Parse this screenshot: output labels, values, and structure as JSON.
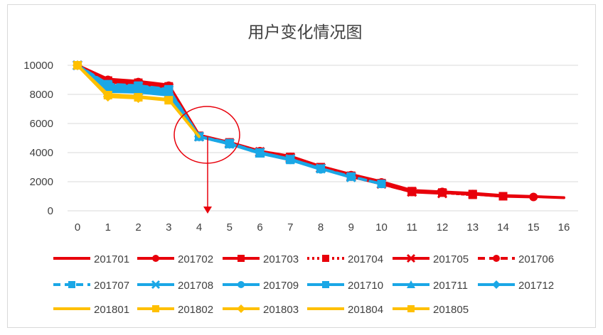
{
  "chart_data": {
    "type": "line",
    "title": "用户变化情况图",
    "xlabel": "",
    "ylabel": "",
    "x": [
      0,
      1,
      2,
      3,
      4,
      5,
      6,
      7,
      8,
      9,
      10,
      11,
      12,
      13,
      14,
      15,
      16
    ],
    "xlim": [
      0,
      16
    ],
    "ylim": [
      0,
      10000
    ],
    "yticks": [
      0,
      2000,
      4000,
      6000,
      8000,
      10000
    ],
    "grid": "horizontal",
    "legend_position": "bottom",
    "annotation": "circle around x=4 with downward arrow",
    "series": [
      {
        "name": "201701",
        "color": "#e8000b",
        "marker": "none",
        "dash": "solid",
        "values": [
          10000,
          9050,
          8900,
          8650,
          5200,
          4700,
          4100,
          3750,
          3050,
          2500,
          2000,
          1400,
          1300,
          1200,
          1050,
          980,
          900
        ]
      },
      {
        "name": "201702",
        "color": "#e8000b",
        "marker": "circle",
        "dash": "solid",
        "values": [
          10000,
          9000,
          8850,
          8600,
          5150,
          4700,
          4100,
          3700,
          3000,
          2450,
          1950,
          1350,
          1300,
          1150,
          1000,
          950,
          null
        ]
      },
      {
        "name": "201703",
        "color": "#e8000b",
        "marker": "square",
        "dash": "solid",
        "values": [
          10000,
          8950,
          8800,
          8550,
          5150,
          4700,
          4050,
          3700,
          3000,
          2400,
          1900,
          1350,
          1250,
          1150,
          1000,
          null,
          null
        ]
      },
      {
        "name": "201704",
        "color": "#e8000b",
        "marker": "square",
        "dash": "dotted",
        "values": [
          10000,
          8900,
          8750,
          8500,
          5150,
          4650,
          4050,
          3650,
          2950,
          2400,
          1900,
          1300,
          1250,
          1100,
          null,
          null,
          null
        ]
      },
      {
        "name": "201705",
        "color": "#e8000b",
        "marker": "x",
        "dash": "solid",
        "values": [
          10000,
          8850,
          8700,
          8450,
          5100,
          4650,
          4050,
          3650,
          2950,
          2350,
          1850,
          1300,
          1200,
          null,
          null,
          null,
          null
        ]
      },
      {
        "name": "201706",
        "color": "#e8000b",
        "marker": "circle",
        "dash": "dashed",
        "values": [
          10000,
          8800,
          8650,
          8400,
          5100,
          4650,
          4000,
          3600,
          2900,
          2350,
          1850,
          1300,
          null,
          null,
          null,
          null,
          null
        ]
      },
      {
        "name": "201707",
        "color": "#1aa7e6",
        "marker": "square",
        "dash": "dashed",
        "values": [
          10000,
          8700,
          8600,
          8350,
          5100,
          4650,
          4000,
          3550,
          2900,
          2350,
          1850,
          null,
          null,
          null,
          null,
          null,
          null
        ]
      },
      {
        "name": "201708",
        "color": "#1aa7e6",
        "marker": "x",
        "dash": "solid",
        "values": [
          10000,
          8600,
          8550,
          8300,
          5100,
          4600,
          4000,
          3550,
          2900,
          2300,
          null,
          null,
          null,
          null,
          null,
          null,
          null
        ]
      },
      {
        "name": "201709",
        "color": "#1aa7e6",
        "marker": "circle",
        "dash": "solid",
        "values": [
          10000,
          8500,
          8450,
          8200,
          5100,
          4600,
          4000,
          3500,
          2850,
          null,
          null,
          null,
          null,
          null,
          null,
          null,
          null
        ]
      },
      {
        "name": "201710",
        "color": "#1aa7e6",
        "marker": "square",
        "dash": "solid",
        "values": [
          10000,
          8400,
          8350,
          8150,
          5100,
          4600,
          3950,
          3500,
          null,
          null,
          null,
          null,
          null,
          null,
          null,
          null,
          null
        ]
      },
      {
        "name": "201711",
        "color": "#1aa7e6",
        "marker": "triangle",
        "dash": "solid",
        "values": [
          10000,
          8300,
          8250,
          8050,
          5100,
          4600,
          3950,
          null,
          null,
          null,
          null,
          null,
          null,
          null,
          null,
          null,
          null
        ]
      },
      {
        "name": "201712",
        "color": "#1aa7e6",
        "marker": "diamond",
        "dash": "solid",
        "values": [
          10000,
          8200,
          8150,
          7950,
          5100,
          4600,
          null,
          null,
          null,
          null,
          null,
          null,
          null,
          null,
          null,
          null,
          null
        ]
      },
      {
        "name": "201801",
        "color": "#ffc000",
        "marker": "none",
        "dash": "solid",
        "values": [
          10000,
          8000,
          7850,
          7650,
          5100,
          null,
          null,
          null,
          null,
          null,
          null,
          null,
          null,
          null,
          null,
          null,
          null
        ]
      },
      {
        "name": "201802",
        "color": "#ffc000",
        "marker": "square",
        "dash": "solid",
        "values": [
          10000,
          7950,
          7800,
          7600,
          null,
          null,
          null,
          null,
          null,
          null,
          null,
          null,
          null,
          null,
          null,
          null,
          null
        ]
      },
      {
        "name": "201803",
        "color": "#ffc000",
        "marker": "diamond",
        "dash": "solid",
        "values": [
          10000,
          7850,
          7750,
          null,
          null,
          null,
          null,
          null,
          null,
          null,
          null,
          null,
          null,
          null,
          null,
          null,
          null
        ]
      },
      {
        "name": "201804",
        "color": "#ffc000",
        "marker": "none",
        "dash": "solid",
        "values": [
          10000,
          7900,
          null,
          null,
          null,
          null,
          null,
          null,
          null,
          null,
          null,
          null,
          null,
          null,
          null,
          null,
          null
        ]
      },
      {
        "name": "201805",
        "color": "#ffc000",
        "marker": "square",
        "dash": "solid",
        "values": [
          10000,
          null,
          null,
          null,
          null,
          null,
          null,
          null,
          null,
          null,
          null,
          null,
          null,
          null,
          null,
          null,
          null
        ]
      }
    ]
  }
}
